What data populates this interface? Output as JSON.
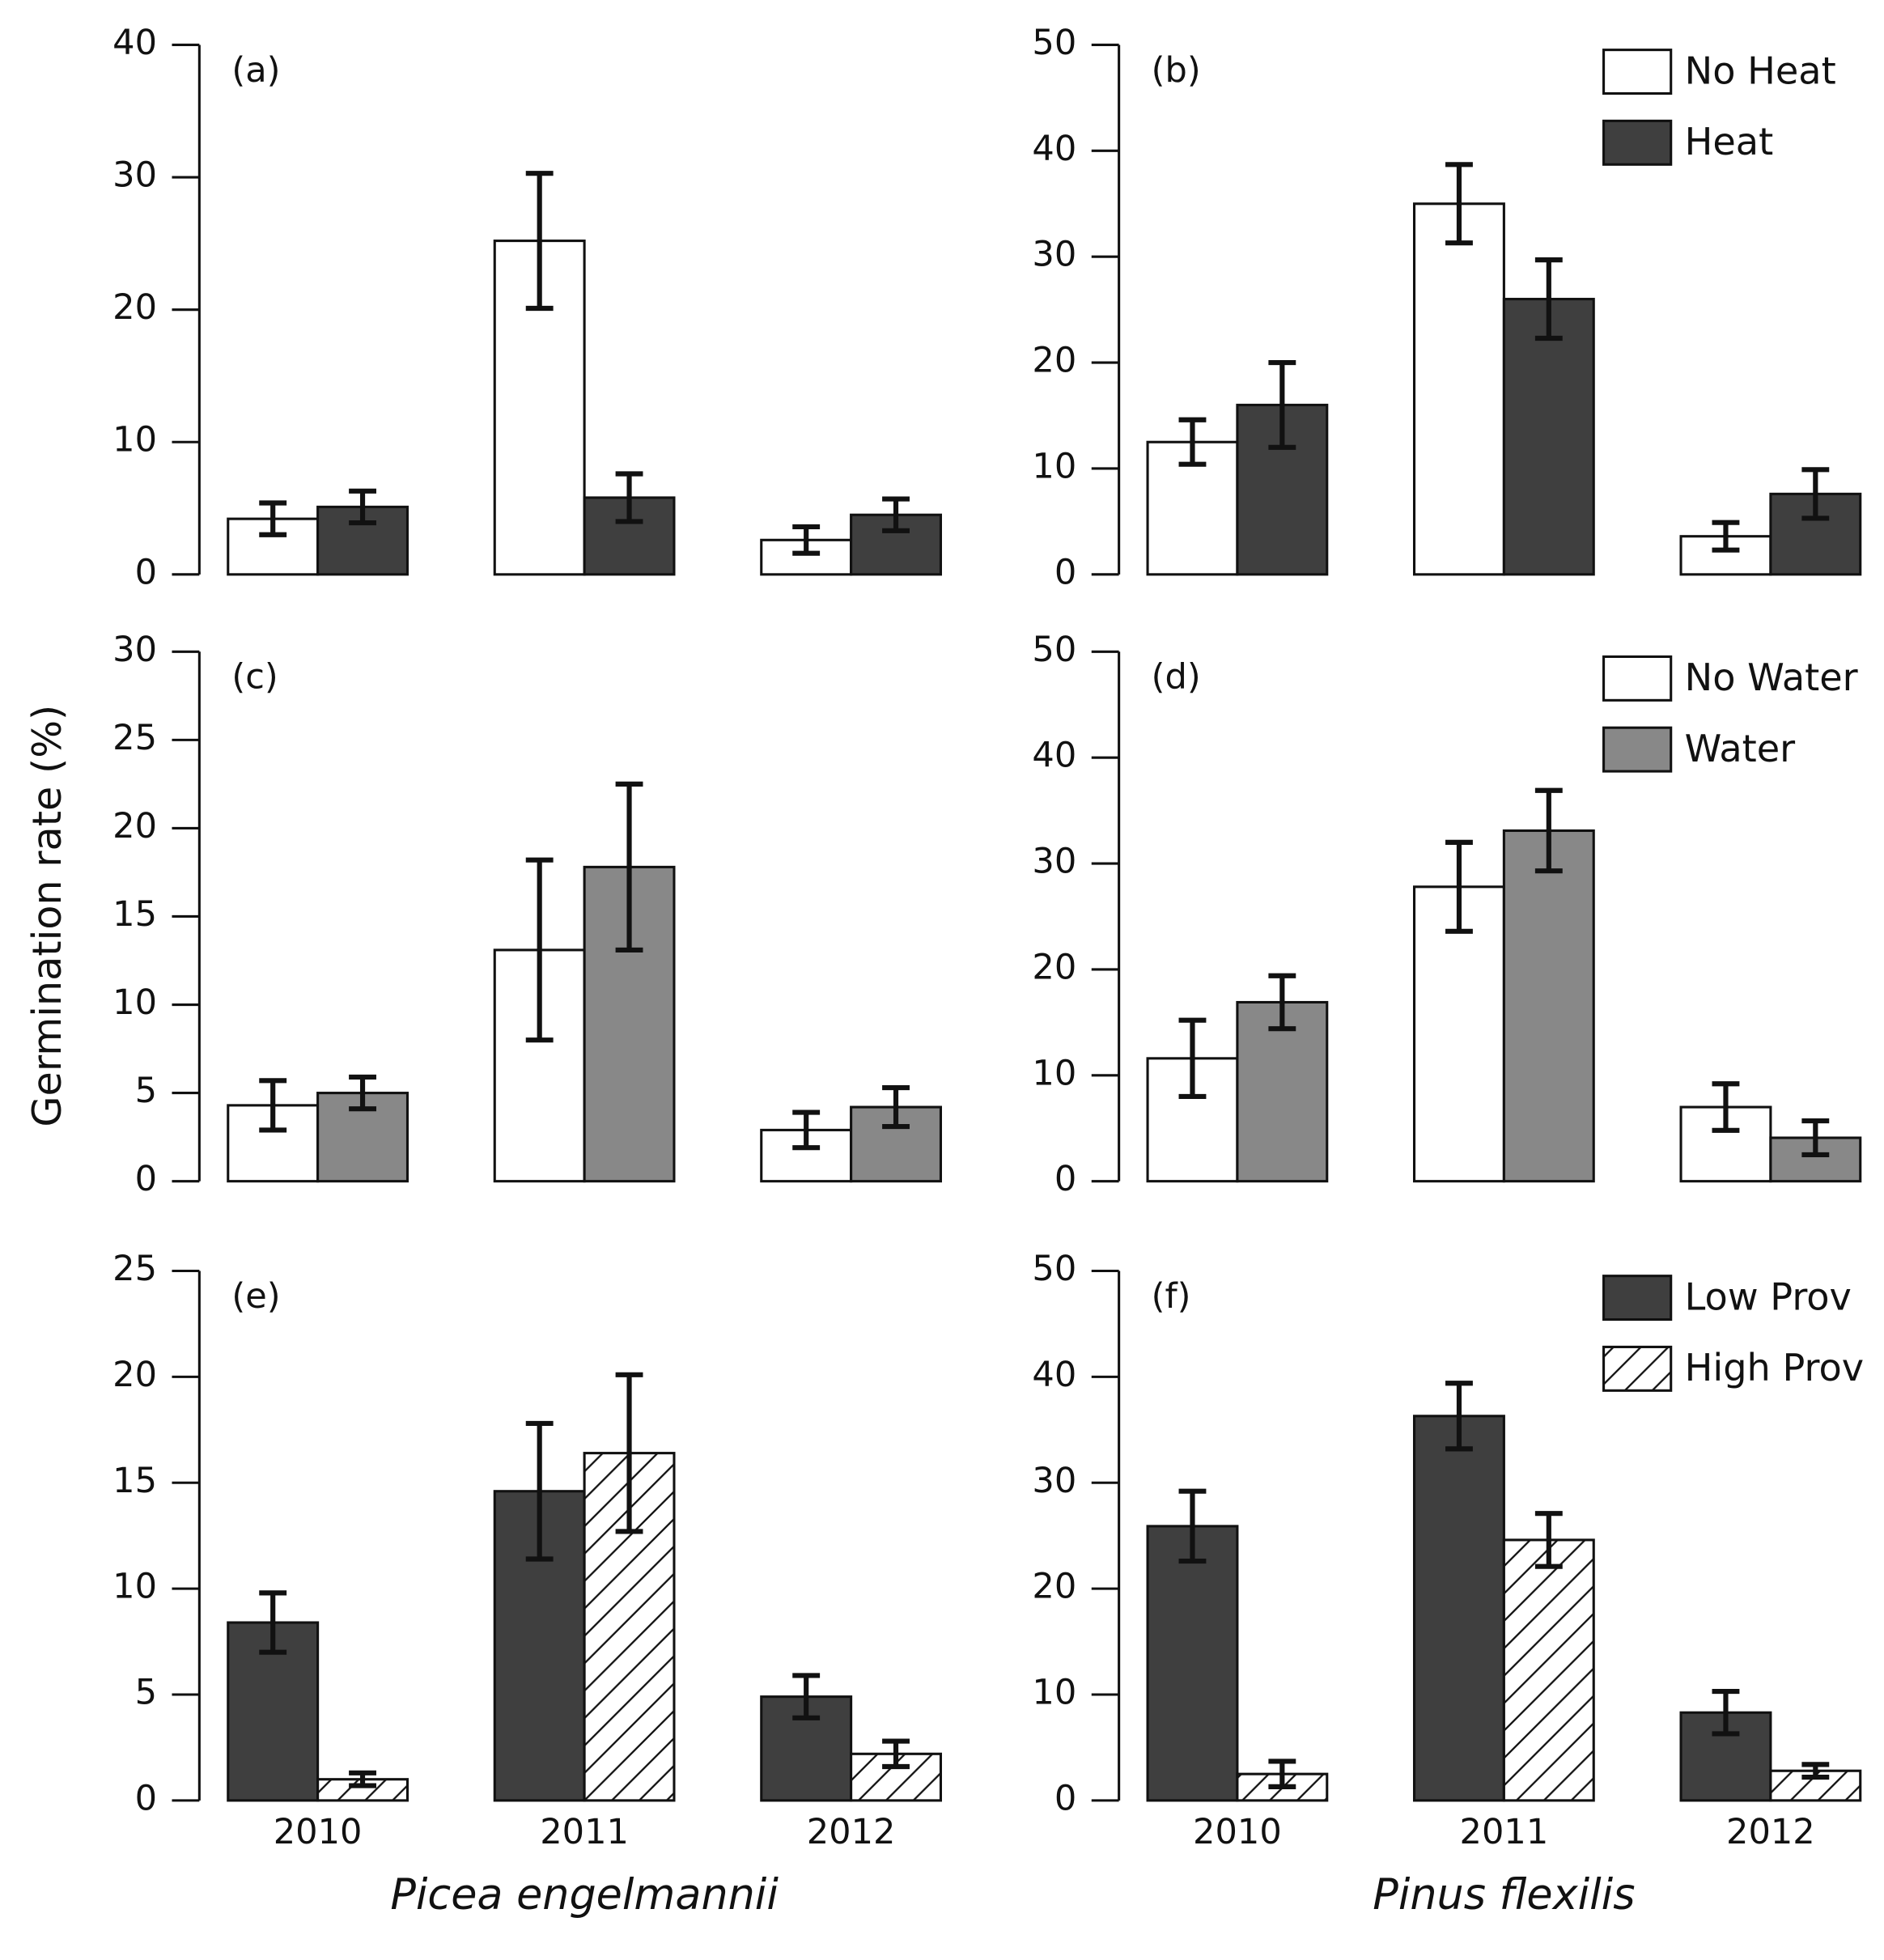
{
  "chart_data": [
    {
      "type": "bar",
      "panel_label": "(a)",
      "ylim": [
        0,
        40
      ],
      "yticks": [
        0,
        10,
        20,
        30,
        40
      ],
      "series": [
        {
          "name": "No Heat",
          "color": "#ffffff",
          "values": [
            4.2,
            25.2,
            2.6
          ],
          "errors": [
            1.2,
            5.1,
            1.0
          ]
        },
        {
          "name": "Heat",
          "color": "#3f3f3f",
          "values": [
            5.1,
            5.8,
            4.5
          ],
          "errors": [
            1.2,
            1.8,
            1.2
          ]
        }
      ]
    },
    {
      "type": "bar",
      "panel_label": "(b)",
      "ylim": [
        0,
        50
      ],
      "yticks": [
        0,
        10,
        20,
        30,
        40,
        50
      ],
      "legend": "upper right",
      "series": [
        {
          "name": "No Heat",
          "color": "#ffffff",
          "values": [
            12.5,
            35,
            3.6
          ],
          "errors": [
            2.1,
            3.7,
            1.3
          ]
        },
        {
          "name": "Heat",
          "color": "#3f3f3f",
          "values": [
            16,
            26,
            7.6
          ],
          "errors": [
            4,
            3.7,
            2.3
          ]
        }
      ]
    },
    {
      "type": "bar",
      "panel_label": "(c)",
      "ylabel": "Germination rate (%)",
      "ylim": [
        0,
        30
      ],
      "yticks": [
        0,
        5,
        10,
        15,
        20,
        25,
        30
      ],
      "series": [
        {
          "name": "No Water",
          "color": "#ffffff",
          "values": [
            4.3,
            13.1,
            2.9
          ],
          "errors": [
            1.4,
            5.1,
            1.0
          ]
        },
        {
          "name": "Water",
          "color": "#888888",
          "values": [
            5.0,
            17.8,
            4.2
          ],
          "errors": [
            0.9,
            4.7,
            1.1
          ]
        }
      ]
    },
    {
      "type": "bar",
      "panel_label": "(d)",
      "ylim": [
        0,
        50
      ],
      "yticks": [
        0,
        10,
        20,
        30,
        40,
        50
      ],
      "legend": "upper right",
      "series": [
        {
          "name": "No Water",
          "color": "#ffffff",
          "values": [
            11.6,
            27.8,
            7.0
          ],
          "errors": [
            3.6,
            4.2,
            2.2
          ]
        },
        {
          "name": "Water",
          "color": "#888888",
          "values": [
            16.9,
            33.1,
            4.1
          ],
          "errors": [
            2.5,
            3.8,
            1.6
          ]
        }
      ]
    },
    {
      "type": "bar",
      "panel_label": "(e)",
      "xlabel": "Picea engelmannii",
      "categories": [
        "2010",
        "2011",
        "2012"
      ],
      "ylim": [
        0,
        25
      ],
      "yticks": [
        0,
        5,
        10,
        15,
        20,
        25
      ],
      "series": [
        {
          "name": "Low Prov",
          "color": "#3f3f3f",
          "values": [
            8.4,
            14.6,
            4.9
          ],
          "errors": [
            1.4,
            3.2,
            1.0
          ]
        },
        {
          "name": "High Prov",
          "color": "#ffffff",
          "pattern": "hatch",
          "values": [
            1.0,
            16.4,
            2.2
          ],
          "errors": [
            0.3,
            3.7,
            0.6
          ]
        }
      ]
    },
    {
      "type": "bar",
      "panel_label": "(f)",
      "xlabel": "Pinus flexilis",
      "categories": [
        "2010",
        "2011",
        "2012"
      ],
      "ylim": [
        0,
        50
      ],
      "yticks": [
        0,
        10,
        20,
        30,
        40,
        50
      ],
      "legend": "upper right",
      "series": [
        {
          "name": "Low Prov",
          "color": "#3f3f3f",
          "values": [
            25.9,
            36.3,
            8.3
          ],
          "errors": [
            3.3,
            3.1,
            2.0
          ]
        },
        {
          "name": "High Prov",
          "color": "#ffffff",
          "pattern": "hatch",
          "values": [
            2.5,
            24.6,
            2.8
          ],
          "errors": [
            1.2,
            2.5,
            0.6
          ]
        }
      ]
    }
  ]
}
